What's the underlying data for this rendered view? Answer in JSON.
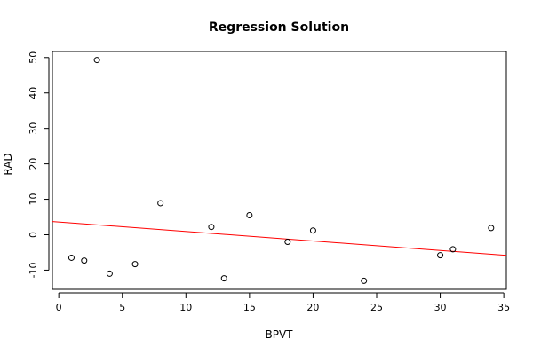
{
  "chart_data": {
    "type": "scatter",
    "title": "Regression Solution",
    "xlabel": "BPVT",
    "ylabel": "RAD",
    "xlim": [
      -0.5,
      35.2
    ],
    "ylim": [
      -15.4,
      51.7
    ],
    "xticks": [
      0,
      5,
      10,
      15,
      20,
      25,
      30,
      35
    ],
    "yticks": [
      -10,
      0,
      10,
      20,
      30,
      40,
      50
    ],
    "grid": false,
    "legend": "none",
    "points": [
      {
        "x": 1,
        "y": -6.5
      },
      {
        "x": 2,
        "y": -7.3
      },
      {
        "x": 3,
        "y": 49.3
      },
      {
        "x": 4,
        "y": -11.0
      },
      {
        "x": 6,
        "y": -8.3
      },
      {
        "x": 8,
        "y": 8.9
      },
      {
        "x": 12,
        "y": 2.2
      },
      {
        "x": 13,
        "y": -12.3
      },
      {
        "x": 15,
        "y": 5.5
      },
      {
        "x": 18,
        "y": -2.0
      },
      {
        "x": 20,
        "y": 1.2
      },
      {
        "x": 24,
        "y": -13.0
      },
      {
        "x": 30,
        "y": -5.8
      },
      {
        "x": 31,
        "y": -4.1
      },
      {
        "x": 34,
        "y": 1.9
      }
    ],
    "regression_line": {
      "intercept": 3.6,
      "slope": -0.268,
      "color": "#ff0000"
    }
  }
}
